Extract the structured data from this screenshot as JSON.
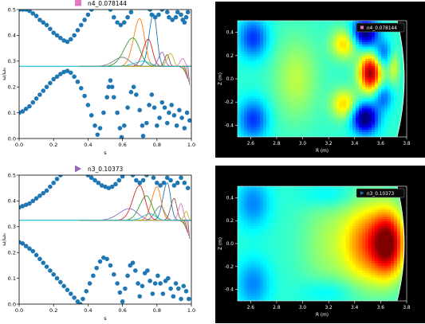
{
  "chart_data": [
    {
      "type": "scatter",
      "title": "",
      "legend": {
        "placement": "top-center",
        "entries": [
          {
            "label": "n4_0.078144",
            "color": "#e377c2",
            "marker": "square"
          }
        ]
      },
      "xlabel": "s",
      "ylabel": "ω/ω₀",
      "xlim": [
        0.0,
        1.0
      ],
      "ylim": [
        0.0,
        0.5
      ],
      "xticks": [
        "0.0",
        "0.2",
        "0.4",
        "0.6",
        "0.8",
        "1.0"
      ],
      "yticks": [
        "0.0",
        "0.1",
        "0.2",
        "0.3",
        "0.4",
        "0.5"
      ],
      "mode_frequency": 0.28,
      "upper_continuum": [
        [
          0.0,
          0.5
        ],
        [
          0.02,
          0.5
        ],
        [
          0.04,
          0.5
        ],
        [
          0.06,
          0.495
        ],
        [
          0.08,
          0.485
        ],
        [
          0.1,
          0.475
        ],
        [
          0.12,
          0.46
        ],
        [
          0.14,
          0.45
        ],
        [
          0.16,
          0.44
        ],
        [
          0.18,
          0.425
        ],
        [
          0.2,
          0.41
        ],
        [
          0.22,
          0.4
        ],
        [
          0.24,
          0.39
        ],
        [
          0.26,
          0.38
        ],
        [
          0.28,
          0.375
        ],
        [
          0.3,
          0.385
        ],
        [
          0.32,
          0.4
        ],
        [
          0.34,
          0.42
        ],
        [
          0.36,
          0.44
        ],
        [
          0.38,
          0.46
        ],
        [
          0.4,
          0.48
        ],
        [
          0.42,
          0.5
        ],
        [
          0.53,
          0.5
        ],
        [
          0.55,
          0.47
        ],
        [
          0.57,
          0.45
        ],
        [
          0.59,
          0.44
        ],
        [
          0.61,
          0.45
        ],
        [
          0.63,
          0.47
        ],
        [
          0.65,
          0.49
        ],
        [
          0.76,
          0.5
        ],
        [
          0.77,
          0.48
        ],
        [
          0.79,
          0.47
        ],
        [
          0.81,
          0.48
        ],
        [
          0.83,
          0.5
        ],
        [
          0.86,
          0.49
        ],
        [
          0.87,
          0.47
        ],
        [
          0.89,
          0.46
        ],
        [
          0.91,
          0.47
        ],
        [
          0.92,
          0.49
        ],
        [
          0.94,
          0.48
        ],
        [
          0.95,
          0.46
        ],
        [
          0.96,
          0.45
        ],
        [
          0.97,
          0.47
        ],
        [
          0.98,
          0.49
        ]
      ],
      "lower_continuum": [
        [
          0.0,
          0.1
        ],
        [
          0.02,
          0.105
        ],
        [
          0.04,
          0.115
        ],
        [
          0.06,
          0.125
        ],
        [
          0.08,
          0.14
        ],
        [
          0.1,
          0.155
        ],
        [
          0.12,
          0.17
        ],
        [
          0.14,
          0.185
        ],
        [
          0.16,
          0.2
        ],
        [
          0.18,
          0.215
        ],
        [
          0.2,
          0.23
        ],
        [
          0.22,
          0.24
        ],
        [
          0.24,
          0.25
        ],
        [
          0.26,
          0.258
        ],
        [
          0.28,
          0.262
        ],
        [
          0.3,
          0.255
        ],
        [
          0.32,
          0.24
        ],
        [
          0.34,
          0.22
        ],
        [
          0.36,
          0.195
        ],
        [
          0.38,
          0.165
        ],
        [
          0.4,
          0.13
        ],
        [
          0.42,
          0.09
        ],
        [
          0.44,
          0.05
        ],
        [
          0.455,
          0.015
        ],
        [
          0.47,
          0.04
        ],
        [
          0.49,
          0.1
        ],
        [
          0.51,
          0.16
        ],
        [
          0.52,
          0.2
        ],
        [
          0.53,
          0.225
        ],
        [
          0.54,
          0.2
        ],
        [
          0.55,
          0.16
        ],
        [
          0.57,
          0.1
        ],
        [
          0.585,
          0.04
        ],
        [
          0.595,
          0.005
        ],
        [
          0.61,
          0.05
        ],
        [
          0.63,
          0.12
        ],
        [
          0.65,
          0.18
        ],
        [
          0.665,
          0.2
        ],
        [
          0.68,
          0.17
        ],
        [
          0.7,
          0.11
        ],
        [
          0.715,
          0.05
        ],
        [
          0.72,
          0.01
        ],
        [
          0.74,
          0.06
        ],
        [
          0.755,
          0.13
        ],
        [
          0.77,
          0.17
        ],
        [
          0.785,
          0.12
        ],
        [
          0.8,
          0.05
        ],
        [
          0.815,
          0.08
        ],
        [
          0.83,
          0.14
        ],
        [
          0.845,
          0.12
        ],
        [
          0.86,
          0.06
        ],
        [
          0.87,
          0.1
        ],
        [
          0.885,
          0.13
        ],
        [
          0.9,
          0.09
        ],
        [
          0.915,
          0.05
        ],
        [
          0.93,
          0.11
        ],
        [
          0.945,
          0.08
        ],
        [
          0.96,
          0.04
        ],
        [
          0.975,
          0.1
        ],
        [
          0.99,
          0.07
        ]
      ],
      "eigenmode_curves": [
        {
          "color": "#1f77b4",
          "peak_s": 0.78,
          "peak": 0.485,
          "width": 0.025
        },
        {
          "color": "#ff7f0e",
          "peak_s": 0.7,
          "peak": 0.465,
          "width": 0.035
        },
        {
          "color": "#2ca02c",
          "peak_s": 0.66,
          "peak": 0.39,
          "width": 0.05
        },
        {
          "color": "#d62728",
          "peak_s": 0.75,
          "peak": 0.385,
          "width": 0.03
        },
        {
          "color": "#9467bd",
          "peak_s": 0.83,
          "peak": 0.335,
          "width": 0.02
        },
        {
          "color": "#8c564b",
          "peak_s": 0.86,
          "peak": 0.325,
          "width": 0.015
        },
        {
          "color": "#e377c2",
          "peak_s": 0.95,
          "peak": 0.31,
          "width": 0.015
        },
        {
          "color": "#7f7f7f",
          "peak_s": 0.6,
          "peak": 0.315,
          "width": 0.05
        },
        {
          "color": "#bcbd22",
          "peak_s": 0.88,
          "peak": 0.33,
          "width": 0.02
        },
        {
          "color": "#17becf",
          "peak_s": 0.72,
          "peak": 0.3,
          "width": 0.05
        }
      ]
    },
    {
      "type": "heatmap",
      "title": "",
      "legend": {
        "placement": "top-right",
        "entries": [
          {
            "label": "n4_0.078144",
            "color": "#e377c2",
            "marker": "square"
          }
        ]
      },
      "xlabel": "R (m)",
      "ylabel": "Z (m)",
      "xlim": [
        2.5,
        3.8
      ],
      "ylim": [
        -0.5,
        0.5
      ],
      "xticks": [
        "2.6",
        "2.8",
        "3.0",
        "3.2",
        "3.4",
        "3.6",
        "3.8"
      ],
      "yticks": [
        "-0.4",
        "-0.2",
        "0.0",
        "0.2",
        "0.4"
      ],
      "blobs": [
        {
          "R": 3.52,
          "Z": 0.05,
          "amp": 1.0,
          "sr": 0.06,
          "sz": 0.11
        },
        {
          "R": 3.48,
          "Z": 0.4,
          "amp": -0.8,
          "sr": 0.07,
          "sz": 0.09
        },
        {
          "R": 3.48,
          "Z": -0.34,
          "amp": -0.85,
          "sr": 0.07,
          "sz": 0.09
        },
        {
          "R": 3.62,
          "Z": 0.22,
          "amp": -0.35,
          "sr": 0.05,
          "sz": 0.08
        },
        {
          "R": 3.62,
          "Z": -0.16,
          "amp": -0.35,
          "sr": 0.05,
          "sz": 0.08
        },
        {
          "R": 3.32,
          "Z": 0.3,
          "amp": 0.45,
          "sr": 0.07,
          "sz": 0.09
        },
        {
          "R": 3.32,
          "Z": -0.22,
          "amp": 0.45,
          "sr": 0.07,
          "sz": 0.09
        },
        {
          "R": 2.62,
          "Z": 0.35,
          "amp": -0.45,
          "sr": 0.08,
          "sz": 0.12
        },
        {
          "R": 2.62,
          "Z": -0.35,
          "amp": -0.45,
          "sr": 0.08,
          "sz": 0.12
        },
        {
          "R": 2.95,
          "Z": 0.0,
          "amp": 0.25,
          "sr": 0.12,
          "sz": 0.25
        },
        {
          "R": 3.7,
          "Z": 0.1,
          "amp": 0.3,
          "sr": 0.03,
          "sz": 0.1
        }
      ]
    },
    {
      "type": "scatter",
      "title": "",
      "legend": {
        "placement": "top-center",
        "entries": [
          {
            "label": "n3_0.10373",
            "color": "#9467bd",
            "marker": "triangle"
          }
        ]
      },
      "xlabel": "s",
      "ylabel": "ω/ω₀",
      "xlim": [
        0.0,
        1.0
      ],
      "ylim": [
        0.0,
        0.5
      ],
      "xticks": [
        "0.0",
        "0.2",
        "0.4",
        "0.6",
        "0.8",
        "1.0"
      ],
      "yticks": [
        "0.0",
        "0.1",
        "0.2",
        "0.3",
        "0.4",
        "0.5"
      ],
      "mode_frequency": 0.325,
      "upper_continuum": [
        [
          0.0,
          0.375
        ],
        [
          0.02,
          0.38
        ],
        [
          0.04,
          0.385
        ],
        [
          0.06,
          0.39
        ],
        [
          0.08,
          0.4
        ],
        [
          0.1,
          0.41
        ],
        [
          0.12,
          0.42
        ],
        [
          0.14,
          0.43
        ],
        [
          0.16,
          0.44
        ],
        [
          0.18,
          0.455
        ],
        [
          0.2,
          0.47
        ],
        [
          0.22,
          0.485
        ],
        [
          0.24,
          0.5
        ],
        [
          0.4,
          0.5
        ],
        [
          0.42,
          0.49
        ],
        [
          0.44,
          0.48
        ],
        [
          0.46,
          0.47
        ],
        [
          0.48,
          0.46
        ],
        [
          0.5,
          0.455
        ],
        [
          0.52,
          0.45
        ],
        [
          0.54,
          0.455
        ],
        [
          0.56,
          0.465
        ],
        [
          0.58,
          0.48
        ],
        [
          0.6,
          0.495
        ],
        [
          0.66,
          0.5
        ],
        [
          0.68,
          0.48
        ],
        [
          0.7,
          0.47
        ],
        [
          0.72,
          0.48
        ],
        [
          0.74,
          0.5
        ],
        [
          0.78,
          0.49
        ],
        [
          0.8,
          0.47
        ],
        [
          0.82,
          0.46
        ],
        [
          0.84,
          0.47
        ],
        [
          0.86,
          0.49
        ],
        [
          0.88,
          0.48
        ],
        [
          0.9,
          0.46
        ],
        [
          0.92,
          0.47
        ],
        [
          0.94,
          0.49
        ],
        [
          0.96,
          0.47
        ],
        [
          0.98,
          0.45
        ]
      ],
      "lower_continuum": [
        [
          0.0,
          0.24
        ],
        [
          0.02,
          0.235
        ],
        [
          0.04,
          0.225
        ],
        [
          0.06,
          0.215
        ],
        [
          0.08,
          0.205
        ],
        [
          0.1,
          0.19
        ],
        [
          0.12,
          0.175
        ],
        [
          0.14,
          0.16
        ],
        [
          0.16,
          0.145
        ],
        [
          0.18,
          0.13
        ],
        [
          0.2,
          0.115
        ],
        [
          0.22,
          0.1
        ],
        [
          0.24,
          0.085
        ],
        [
          0.26,
          0.07
        ],
        [
          0.28,
          0.055
        ],
        [
          0.3,
          0.04
        ],
        [
          0.32,
          0.025
        ],
        [
          0.34,
          0.01
        ],
        [
          0.355,
          0.0
        ],
        [
          0.37,
          0.02
        ],
        [
          0.39,
          0.05
        ],
        [
          0.41,
          0.08
        ],
        [
          0.43,
          0.11
        ],
        [
          0.45,
          0.14
        ],
        [
          0.47,
          0.165
        ],
        [
          0.49,
          0.18
        ],
        [
          0.51,
          0.175
        ],
        [
          0.53,
          0.15
        ],
        [
          0.55,
          0.115
        ],
        [
          0.57,
          0.08
        ],
        [
          0.585,
          0.045
        ],
        [
          0.6,
          0.01
        ],
        [
          0.615,
          0.06
        ],
        [
          0.63,
          0.11
        ],
        [
          0.645,
          0.15
        ],
        [
          0.66,
          0.16
        ],
        [
          0.675,
          0.13
        ],
        [
          0.69,
          0.08
        ],
        [
          0.7,
          0.03
        ],
        [
          0.715,
          0.07
        ],
        [
          0.73,
          0.12
        ],
        [
          0.745,
          0.13
        ],
        [
          0.76,
          0.09
        ],
        [
          0.775,
          0.04
        ],
        [
          0.79,
          0.08
        ],
        [
          0.805,
          0.11
        ],
        [
          0.82,
          0.08
        ],
        [
          0.835,
          0.04
        ],
        [
          0.85,
          0.09
        ],
        [
          0.865,
          0.1
        ],
        [
          0.88,
          0.06
        ],
        [
          0.895,
          0.03
        ],
        [
          0.91,
          0.08
        ],
        [
          0.925,
          0.06
        ],
        [
          0.94,
          0.02
        ],
        [
          0.955,
          0.07
        ],
        [
          0.97,
          0.05
        ],
        [
          0.985,
          0.02
        ]
      ],
      "eigenmode_curves": [
        {
          "color": "#1f77b4",
          "peak_s": 0.86,
          "peak": 0.47,
          "width": 0.025
        },
        {
          "color": "#ff7f0e",
          "peak_s": 0.8,
          "peak": 0.455,
          "width": 0.03
        },
        {
          "color": "#2ca02c",
          "peak_s": 0.74,
          "peak": 0.42,
          "width": 0.04
        },
        {
          "color": "#d62728",
          "peak_s": 0.7,
          "peak": 0.46,
          "width": 0.04
        },
        {
          "color": "#9467bd",
          "peak_s": 0.64,
          "peak": 0.37,
          "width": 0.06
        },
        {
          "color": "#8c564b",
          "peak_s": 0.9,
          "peak": 0.41,
          "width": 0.02
        },
        {
          "color": "#e377c2",
          "peak_s": 0.94,
          "peak": 0.39,
          "width": 0.015
        },
        {
          "color": "#7f7f7f",
          "peak_s": 0.82,
          "peak": 0.38,
          "width": 0.03
        },
        {
          "color": "#bcbd22",
          "peak_s": 0.97,
          "peak": 0.36,
          "width": 0.012
        },
        {
          "color": "#17becf",
          "peak_s": 0.76,
          "peak": 0.35,
          "width": 0.04
        }
      ]
    },
    {
      "type": "heatmap",
      "title": "",
      "legend": {
        "placement": "top-right",
        "entries": [
          {
            "label": "n3_0.10373",
            "color": "#1f77b4",
            "marker": "triangle"
          }
        ]
      },
      "xlabel": "R (m)",
      "ylabel": "Z (m)",
      "xlim": [
        2.5,
        3.8
      ],
      "ylim": [
        -0.5,
        0.5
      ],
      "xticks": [
        "2.6",
        "2.8",
        "3.0",
        "3.2",
        "3.4",
        "3.6",
        "3.8"
      ],
      "yticks": [
        "-0.4",
        "-0.2",
        "0.0",
        "0.2",
        "0.4"
      ],
      "blobs": [
        {
          "R": 3.66,
          "Z": 0.0,
          "amp": 1.0,
          "sr": 0.09,
          "sz": 0.2
        },
        {
          "R": 3.48,
          "Z": 0.0,
          "amp": 0.55,
          "sr": 0.12,
          "sz": 0.25
        },
        {
          "R": 3.2,
          "Z": 0.0,
          "amp": 0.2,
          "sr": 0.15,
          "sz": 0.3
        },
        {
          "R": 2.62,
          "Z": 0.35,
          "amp": -0.3,
          "sr": 0.09,
          "sz": 0.15
        },
        {
          "R": 2.62,
          "Z": -0.35,
          "amp": -0.3,
          "sr": 0.09,
          "sz": 0.15
        },
        {
          "R": 3.2,
          "Z": 0.42,
          "amp": -0.15,
          "sr": 0.15,
          "sz": 0.08
        },
        {
          "R": 3.2,
          "Z": -0.42,
          "amp": -0.15,
          "sr": 0.15,
          "sz": 0.08
        }
      ]
    }
  ]
}
